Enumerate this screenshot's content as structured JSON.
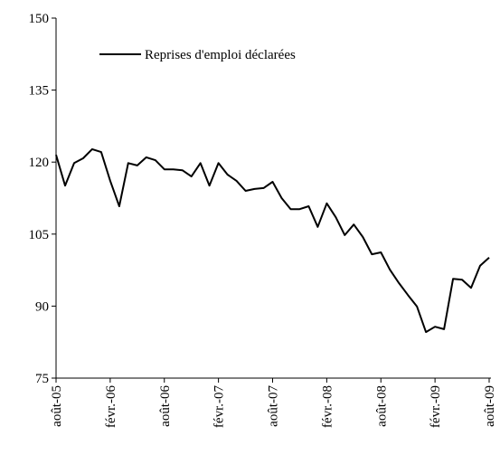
{
  "chart_data": {
    "type": "line",
    "categories": [
      "août-05",
      null,
      null,
      null,
      null,
      null,
      "févr.-06",
      null,
      null,
      null,
      null,
      null,
      "août-06",
      null,
      null,
      null,
      null,
      null,
      "févr.-07",
      null,
      null,
      null,
      null,
      null,
      "août-07",
      null,
      null,
      null,
      null,
      null,
      "févr.-08",
      null,
      null,
      null,
      null,
      null,
      "août-08",
      null,
      null,
      null,
      null,
      null,
      "févr.-09",
      null,
      null,
      null,
      null,
      null,
      "août-09"
    ],
    "series": [
      {
        "name": "Reprises d'emploi déclarées",
        "color": "#000000",
        "values": [
          121.5,
          115.1,
          119.8,
          120.8,
          122.7,
          122.1,
          116.1,
          110.8,
          119.8,
          119.3,
          121,
          120.4,
          118.5,
          118.5,
          118.3,
          117,
          119.8,
          115.1,
          119.8,
          117.4,
          116.1,
          114,
          114.4,
          114.6,
          115.9,
          112.5,
          110.2,
          110.2,
          110.8,
          106.5,
          111.4,
          108.5,
          104.8,
          107,
          104.4,
          100.8,
          101.2,
          97.6,
          94.8,
          92.3,
          89.9,
          84.6,
          85.7,
          85.2,
          95.7,
          95.5,
          93.8,
          98.4,
          100.1
        ]
      }
    ],
    "ylim": [
      75,
      150
    ],
    "yticks": [
      75,
      90,
      105,
      120,
      135,
      150
    ],
    "grid": false,
    "legend": "top-left"
  }
}
